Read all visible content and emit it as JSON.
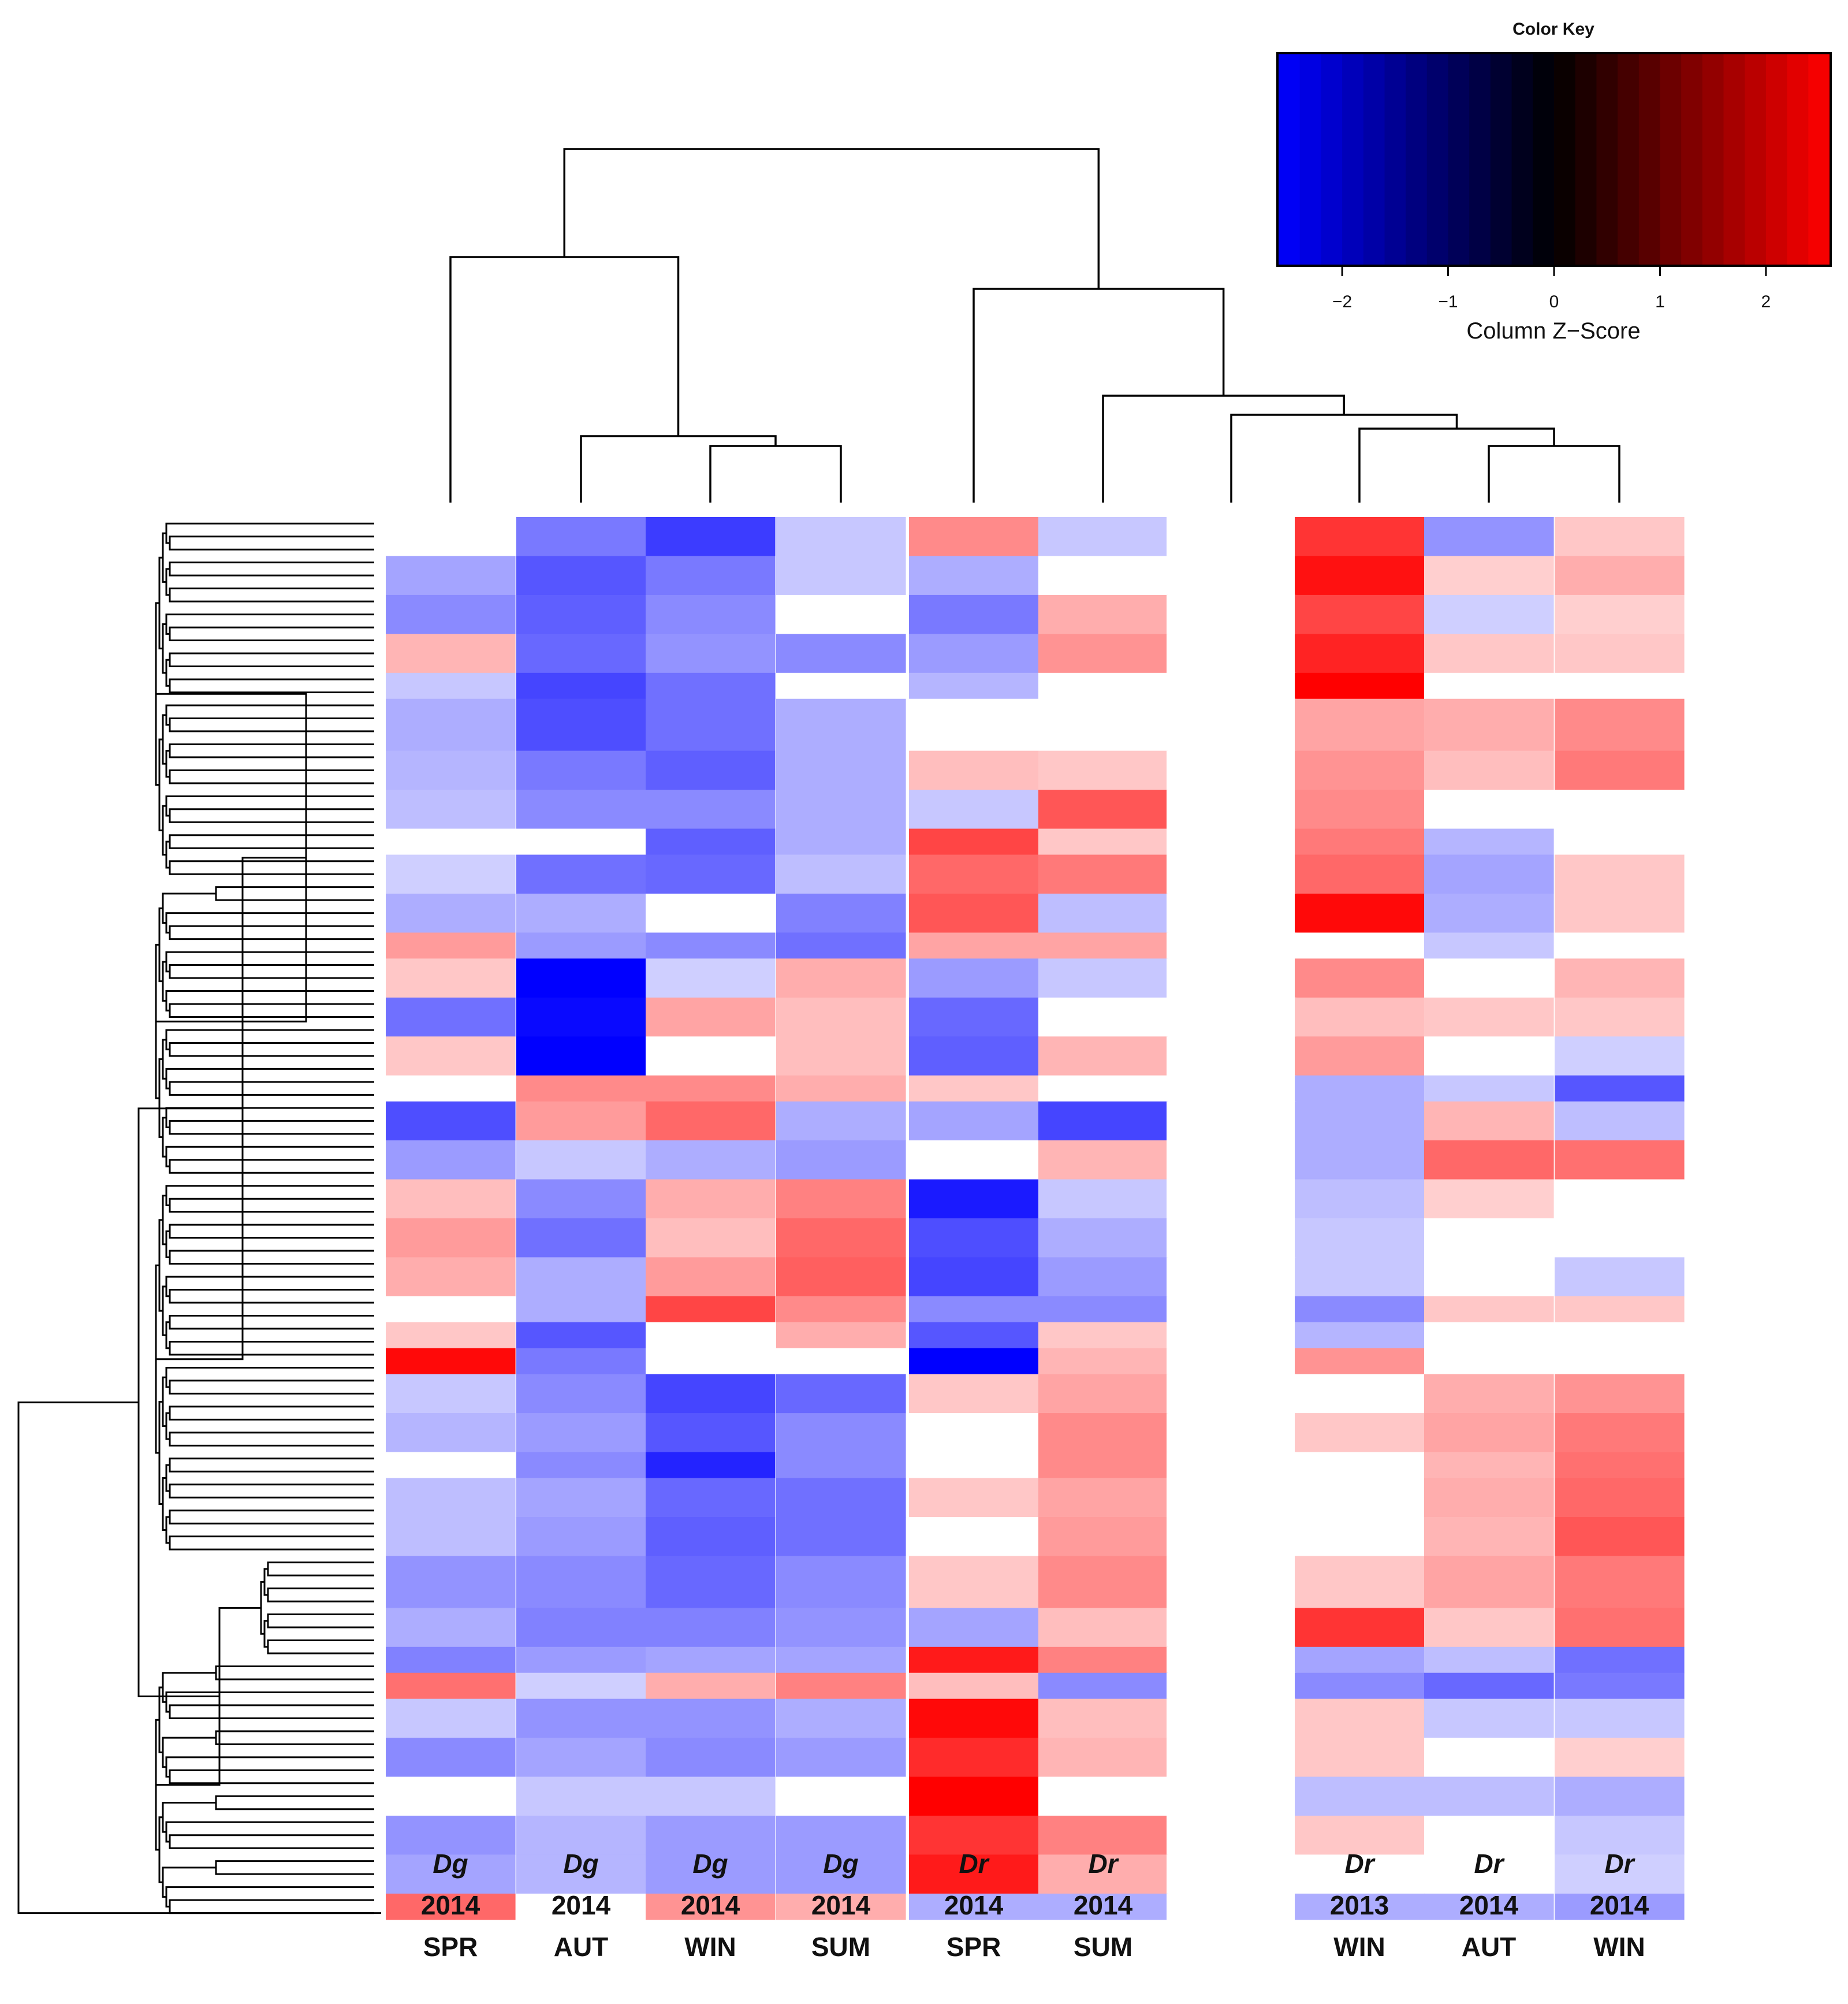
{
  "chart_data": {
    "type": "heatmap",
    "title": "",
    "color_key": {
      "title": "Color Key",
      "xlabel": "Column Z−Score",
      "ticks": [
        -2,
        -1,
        0,
        1,
        2
      ],
      "tick_labels": [
        "−2",
        "−1",
        "0",
        "1",
        "2"
      ],
      "range": [
        -2.6,
        2.6
      ],
      "colors": {
        "low": "#0000ff",
        "mid": "#000000",
        "high": "#ff0000"
      }
    },
    "columns": [
      {
        "species": "Dg",
        "year": "2014",
        "season": "SPR"
      },
      {
        "species": "Dg",
        "year": "2014",
        "season": "AUT"
      },
      {
        "species": "Dg",
        "year": "2014",
        "season": "WIN"
      },
      {
        "species": "Dg",
        "year": "2014",
        "season": "SUM"
      },
      {
        "species": "Dr",
        "year": "2014",
        "season": "SPR"
      },
      {
        "species": "Dr",
        "year": "2014",
        "season": "SUM"
      },
      {
        "species": "",
        "year": "",
        "season": ""
      },
      {
        "species": "Dr",
        "year": "2013",
        "season": "WIN"
      },
      {
        "species": "Dr",
        "year": "2014",
        "season": "AUT"
      },
      {
        "species": "Dr",
        "year": "2014",
        "season": "WIN"
      }
    ],
    "segments": [
      {
        "rows": 3,
        "z": [
          0.0,
          -1.2,
          -1.9,
          -0.3,
          1.0,
          -0.3,
          0,
          2.0,
          -0.9,
          0.3
        ]
      },
      {
        "rows": 3,
        "z": [
          -0.7,
          -1.6,
          -1.2,
          -0.3,
          -0.6,
          0.0,
          0,
          2.4,
          0.2,
          0.6
        ]
      },
      {
        "rows": 3,
        "z": [
          -1.0,
          -1.5,
          -1.0,
          0.0,
          -1.2,
          0.6,
          0,
          1.8,
          -0.2,
          0.2
        ]
      },
      {
        "rows": 3,
        "z": [
          0.5,
          -1.4,
          -0.9,
          -1.0,
          -0.8,
          0.9,
          0,
          2.2,
          0.3,
          0.3
        ]
      },
      {
        "rows": 2,
        "z": [
          -0.3,
          -1.8,
          -1.3,
          0.0,
          -0.5,
          0.0,
          0,
          2.6,
          0.0,
          0.0
        ]
      },
      {
        "rows": 4,
        "z": [
          -0.6,
          -1.7,
          -1.3,
          -0.6,
          0.0,
          0.0,
          0,
          0.7,
          0.6,
          1.0
        ]
      },
      {
        "rows": 3,
        "z": [
          -0.5,
          -1.2,
          -1.5,
          -0.6,
          0.4,
          0.3,
          0,
          0.9,
          0.4,
          1.2
        ]
      },
      {
        "rows": 3,
        "z": [
          -0.4,
          -1.0,
          -1.0,
          -0.6,
          -0.3,
          1.6,
          0,
          1.0,
          0.0,
          0.0
        ]
      },
      {
        "rows": 2,
        "z": [
          0.0,
          0.0,
          -1.5,
          -0.6,
          1.8,
          0.3,
          0,
          1.2,
          -0.5,
          0.0
        ]
      },
      {
        "rows": 3,
        "z": [
          -0.2,
          -1.3,
          -1.4,
          -0.4,
          1.4,
          1.2,
          0,
          1.4,
          -0.7,
          0.3
        ]
      },
      {
        "rows": 3,
        "z": [
          -0.6,
          -0.6,
          0.0,
          -1.1,
          1.6,
          -0.4,
          0,
          2.5,
          -0.6,
          0.3
        ]
      },
      {
        "rows": 2,
        "z": [
          0.8,
          -0.8,
          -1.0,
          -1.3,
          0.7,
          0.7,
          0,
          0.0,
          -0.3,
          0.0
        ]
      },
      {
        "rows": 3,
        "z": [
          0.3,
          -2.6,
          -0.2,
          0.6,
          -0.8,
          -0.3,
          0,
          1.0,
          0.0,
          0.5
        ]
      },
      {
        "rows": 3,
        "z": [
          -1.3,
          -2.5,
          0.7,
          0.4,
          -1.4,
          0.0,
          0,
          0.4,
          0.3,
          0.3
        ]
      },
      {
        "rows": 3,
        "z": [
          0.3,
          -2.6,
          0.0,
          0.4,
          -1.5,
          0.5,
          0,
          0.8,
          0.0,
          -0.2
        ]
      },
      {
        "rows": 2,
        "z": [
          0.0,
          1.0,
          1.0,
          0.6,
          0.3,
          0.0,
          0,
          -0.6,
          -0.3,
          -1.6
        ]
      },
      {
        "rows": 3,
        "z": [
          -1.7,
          0.8,
          1.4,
          -0.6,
          -0.7,
          -1.8,
          0,
          -0.6,
          0.5,
          -0.4
        ]
      },
      {
        "rows": 3,
        "z": [
          -0.8,
          -0.3,
          -0.6,
          -0.8,
          0.0,
          0.5,
          0,
          -0.6,
          1.4,
          1.3
        ]
      },
      {
        "rows": 3,
        "z": [
          0.4,
          -1.0,
          0.6,
          1.1,
          -2.3,
          -0.3,
          0,
          -0.4,
          0.2,
          0.0
        ]
      },
      {
        "rows": 3,
        "z": [
          0.8,
          -1.3,
          0.4,
          1.4,
          -1.7,
          -0.6,
          0,
          -0.3,
          0.0,
          0.0
        ]
      },
      {
        "rows": 3,
        "z": [
          0.6,
          -0.6,
          0.8,
          1.5,
          -1.8,
          -0.8,
          0,
          -0.3,
          0.0,
          -0.3
        ]
      },
      {
        "rows": 2,
        "z": [
          0.0,
          -0.6,
          1.8,
          1.0,
          -1.0,
          -1.0,
          0,
          -1.0,
          0.3,
          0.3
        ]
      },
      {
        "rows": 2,
        "z": [
          0.3,
          -1.6,
          0.0,
          0.6,
          -1.6,
          0.3,
          0,
          -0.5,
          0.0,
          0.0
        ]
      },
      {
        "rows": 2,
        "z": [
          2.5,
          -1.2,
          0.0,
          0.0,
          -2.6,
          0.5,
          0,
          0.9,
          0.0,
          0.0
        ]
      },
      {
        "rows": 3,
        "z": [
          -0.3,
          -1.0,
          -1.8,
          -1.4,
          0.3,
          0.7,
          0,
          0.0,
          0.6,
          0.9
        ]
      },
      {
        "rows": 3,
        "z": [
          -0.5,
          -0.8,
          -1.6,
          -1.0,
          0.0,
          1.0,
          0,
          0.3,
          0.7,
          1.2
        ]
      },
      {
        "rows": 2,
        "z": [
          0.0,
          -1.0,
          -2.2,
          -1.0,
          0.0,
          1.0,
          0,
          0.0,
          0.5,
          1.3
        ]
      },
      {
        "rows": 3,
        "z": [
          -0.4,
          -0.7,
          -1.4,
          -1.3,
          0.3,
          0.7,
          0,
          0.0,
          0.6,
          1.4
        ]
      },
      {
        "rows": 3,
        "z": [
          -0.4,
          -0.8,
          -1.5,
          -1.3,
          0.0,
          0.8,
          0,
          0.0,
          0.5,
          1.6
        ]
      },
      {
        "rows": 4,
        "z": [
          -0.9,
          -1.0,
          -1.4,
          -1.0,
          0.3,
          1.0,
          0,
          0.3,
          0.7,
          1.2
        ]
      },
      {
        "rows": 3,
        "z": [
          -0.6,
          -1.1,
          -1.1,
          -0.9,
          -0.7,
          0.4,
          0,
          2.0,
          0.3,
          1.3
        ]
      },
      {
        "rows": 2,
        "z": [
          -1.1,
          -0.8,
          -0.7,
          -0.7,
          2.3,
          1.1,
          0,
          -0.7,
          -0.4,
          -1.3
        ]
      },
      {
        "rows": 2,
        "z": [
          1.3,
          -0.2,
          0.6,
          1.1,
          0.4,
          -1.0,
          0,
          -1.0,
          -1.4,
          -1.2
        ]
      },
      {
        "rows": 3,
        "z": [
          -0.3,
          -0.9,
          -0.9,
          -0.6,
          2.5,
          0.4,
          0,
          0.3,
          -0.3,
          -0.3
        ]
      },
      {
        "rows": 3,
        "z": [
          -1.0,
          -0.7,
          -1.0,
          -0.8,
          2.1,
          0.5,
          0,
          0.3,
          0.0,
          0.2
        ]
      },
      {
        "rows": 3,
        "z": [
          0.0,
          -0.3,
          -0.3,
          0.0,
          2.6,
          0.0,
          0,
          -0.4,
          -0.4,
          -0.6
        ]
      },
      {
        "rows": 3,
        "z": [
          -0.9,
          -0.5,
          -0.8,
          -0.8,
          2.0,
          1.1,
          0,
          0.3,
          0.0,
          -0.3
        ]
      },
      {
        "rows": 3,
        "z": [
          -0.7,
          -0.5,
          -0.8,
          -0.8,
          2.3,
          0.6,
          0,
          0.0,
          0.0,
          -0.2
        ]
      },
      {
        "rows": 2,
        "z": [
          1.4,
          0.0,
          0.9,
          0.6,
          -0.6,
          -0.6,
          0,
          -0.6,
          -0.6,
          -0.8
        ]
      }
    ]
  }
}
